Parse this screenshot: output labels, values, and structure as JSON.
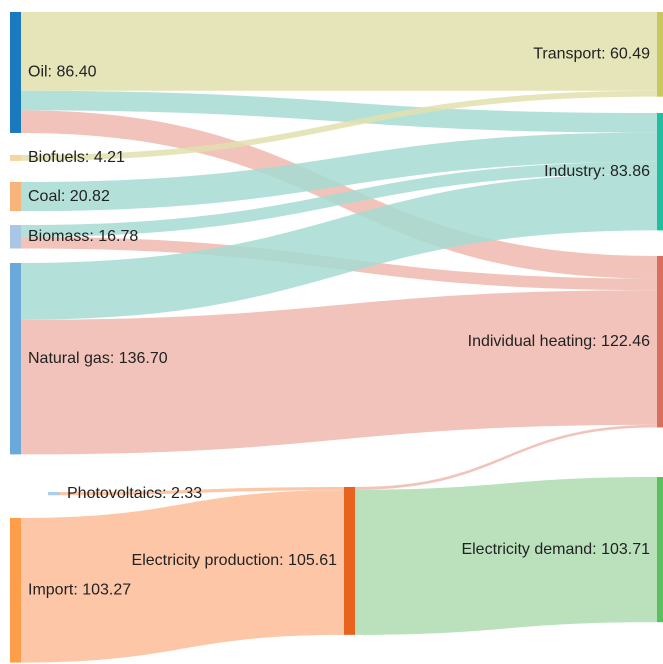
{
  "nodes": [
    {
      "label": "Oil: 86.40",
      "value": 86.4,
      "color": "#1a7abf"
    },
    {
      "label": "Biofuels: 4.21",
      "value": 4.21,
      "color": "#f5d5a0"
    },
    {
      "label": "Coal: 20.82",
      "value": 20.82,
      "color": "#f7b57c"
    },
    {
      "label": "Biomass: 16.78",
      "value": 16.78,
      "color": "#a9c6e6"
    },
    {
      "label": "Natural gas: 136.70",
      "value": 136.7,
      "color": "#6aa9d9"
    },
    {
      "label": "Photovoltaics: 2.33",
      "value": 2.33,
      "color": "#aecde9"
    },
    {
      "label": "Import: 103.27",
      "value": 103.27,
      "color": "#ff9e4a"
    },
    {
      "label": "Electricity production: 105.61",
      "value": 105.61,
      "color": "#e8641e"
    },
    {
      "label": "Transport: 60.49",
      "value": 60.49,
      "color": "#c9c760"
    },
    {
      "label": "Industry: 83.86",
      "value": 83.86,
      "color": "#1fbfa0"
    },
    {
      "label": "Individual heating: 122.46",
      "value": 122.46,
      "color": "#d9705e"
    },
    {
      "label": "Electricity demand: 103.71",
      "value": 103.71,
      "color": "#5cbf5f"
    }
  ],
  "links": [
    {
      "source": 0,
      "target": 8,
      "value": 56.28,
      "color": "#e2e0ae"
    },
    {
      "source": 0,
      "target": 9,
      "value": 14.0,
      "color": "#a6dcd2"
    },
    {
      "source": 0,
      "target": 10,
      "value": 16.12,
      "color": "#eeb8ae"
    },
    {
      "source": 1,
      "target": 8,
      "value": 4.21,
      "color": "#e2e0ae"
    },
    {
      "source": 2,
      "target": 9,
      "value": 20.82,
      "color": "#a6dcd2"
    },
    {
      "source": 3,
      "target": 9,
      "value": 8.5,
      "color": "#a6dcd2"
    },
    {
      "source": 3,
      "target": 10,
      "value": 8.28,
      "color": "#eeb8ae"
    },
    {
      "source": 4,
      "target": 9,
      "value": 40.54,
      "color": "#a6dcd2"
    },
    {
      "source": 4,
      "target": 10,
      "value": 96.16,
      "color": "#eeb8ae"
    },
    {
      "source": 5,
      "target": 7,
      "value": 2.33,
      "color": "#fdbd98"
    },
    {
      "source": 6,
      "target": 7,
      "value": 103.27,
      "color": "#fdbd98"
    },
    {
      "source": 7,
      "target": 10,
      "value": 1.9,
      "color": "#eeb8ae"
    },
    {
      "source": 7,
      "target": 11,
      "value": 103.71,
      "color": "#aedcb0"
    }
  ]
}
